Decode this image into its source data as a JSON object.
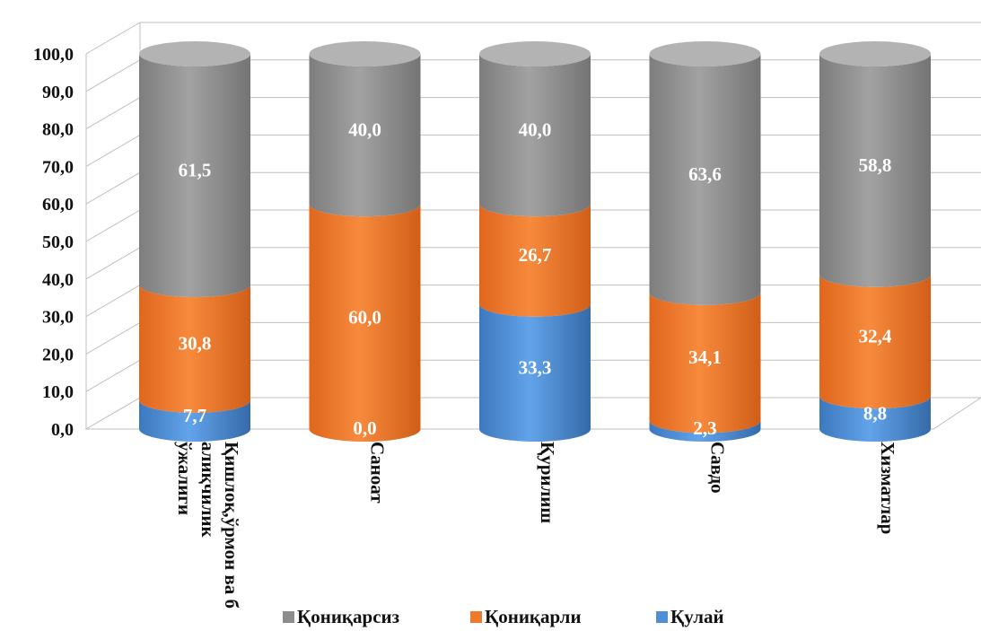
{
  "chart_data": {
    "type": "bar",
    "stacked": true,
    "style": "3d-cylinder",
    "categories": [
      "Қишлоқ,ўрмон ва балиқчилик хўжалиги",
      "Саноат",
      "Қурилиш",
      "Савдо",
      "Хизматлар"
    ],
    "series": [
      {
        "name": "Қулай",
        "color": "#4f8fd6",
        "values": [
          7.7,
          0.0,
          33.3,
          2.3,
          8.8
        ],
        "labels": [
          "7,7",
          "0,0",
          "33,3",
          "2,3",
          "8,8"
        ]
      },
      {
        "name": "Қониқарли",
        "color": "#ed7b2f",
        "values": [
          30.8,
          60.0,
          26.7,
          34.1,
          32.4
        ],
        "labels": [
          "30,8",
          "60,0",
          "26,7",
          "34,1",
          "32,4"
        ]
      },
      {
        "name": "Қониқарсиз",
        "color": "#8c8c8c",
        "values": [
          61.5,
          40.0,
          40.0,
          63.6,
          58.8
        ],
        "labels": [
          "61,5",
          "40,0",
          "40,0",
          "63,6",
          "58,8"
        ]
      }
    ],
    "legend_order": [
      "Қониқарсиз",
      "Қониқарли",
      "Қулай"
    ],
    "legend_position": "bottom",
    "ylim": [
      0,
      100
    ],
    "yticks": [
      0,
      10,
      20,
      30,
      40,
      50,
      60,
      70,
      80,
      90,
      100
    ],
    "ytick_labels": [
      "0,0",
      "10,0",
      "20,0",
      "30,0",
      "40,0",
      "50,0",
      "60,0",
      "70,0",
      "80,0",
      "90,0",
      "100,0"
    ],
    "grid": true
  }
}
